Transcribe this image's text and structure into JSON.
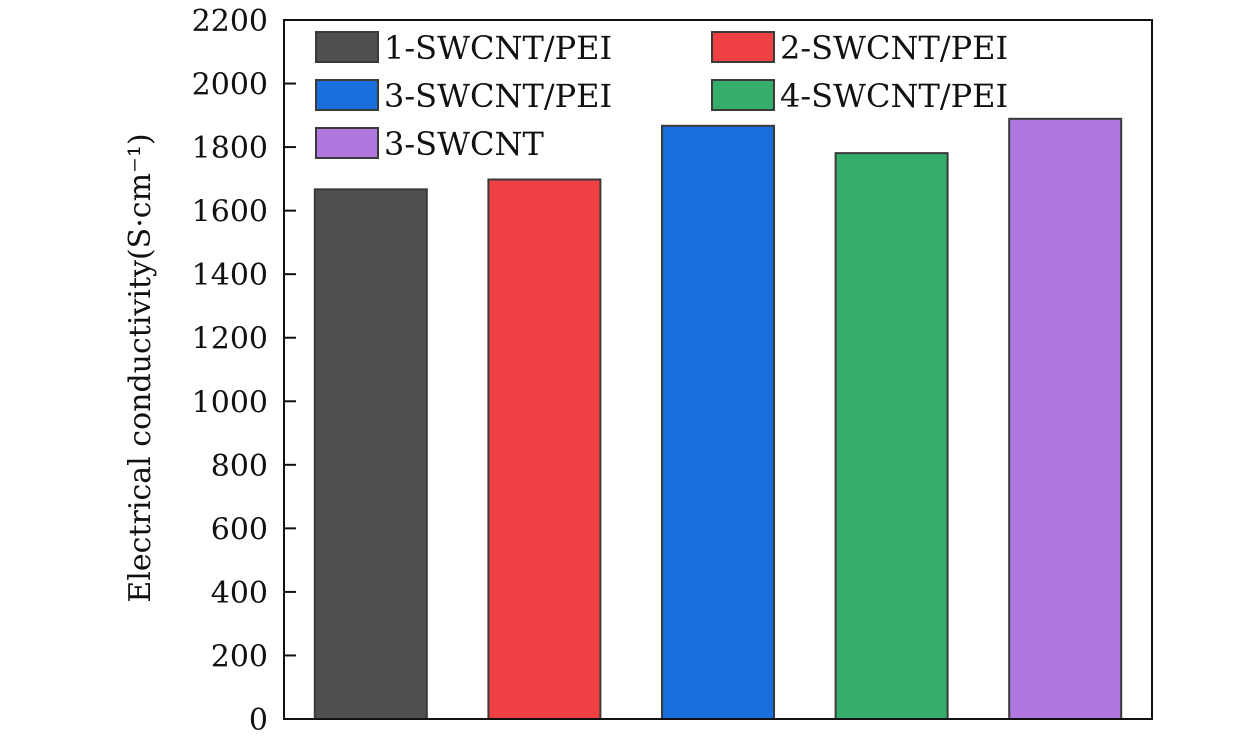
{
  "chart_data": {
    "type": "bar",
    "title": "",
    "xlabel": "",
    "ylabel": "Electrical conductivity(S·cm⁻¹)",
    "ylim": [
      0,
      2200
    ],
    "yticks": [
      0,
      200,
      400,
      600,
      800,
      1000,
      1200,
      1400,
      1600,
      1800,
      2000,
      2200
    ],
    "grid": false,
    "legend_position": "top-left",
    "categories": [
      "1-SWCNT/PEI",
      "2-SWCNT/PEI",
      "3-SWCNT/PEI",
      "4-SWCNT/PEI",
      "3-SWCNT"
    ],
    "values": [
      1667,
      1698,
      1867,
      1781,
      1889
    ],
    "colors": [
      "#505050",
      "#ef4043",
      "#1a6ede",
      "#35ad6b",
      "#b077de"
    ]
  }
}
